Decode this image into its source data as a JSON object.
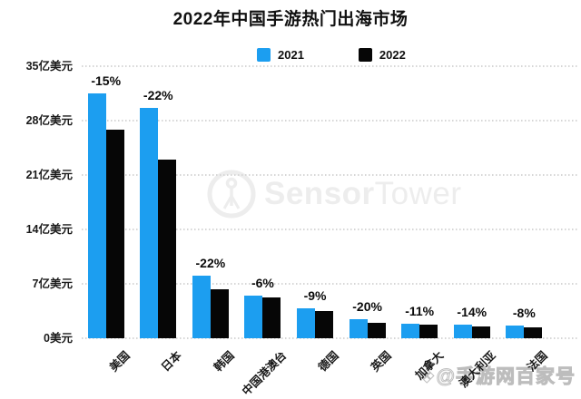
{
  "chart_data": {
    "type": "bar",
    "title": "2022年中国手游热门出海市场",
    "categories": [
      "美国",
      "日本",
      "韩国",
      "中国港澳台",
      "德国",
      "英国",
      "加拿大",
      "澳大利亚",
      "法国"
    ],
    "series": [
      {
        "name": "2021",
        "color": "#1C9EF0",
        "values": [
          31.5,
          29.6,
          8.1,
          5.5,
          3.9,
          2.5,
          1.9,
          1.75,
          1.6
        ]
      },
      {
        "name": "2022",
        "color": "#060606",
        "values": [
          26.8,
          23.0,
          6.3,
          5.2,
          3.55,
          2.0,
          1.7,
          1.5,
          1.45
        ]
      }
    ],
    "change_labels": [
      "-15%",
      "-22%",
      "-22%",
      "-6%",
      "-9%",
      "-20%",
      "-11%",
      "-14%",
      "-8%"
    ],
    "y_ticks": [
      "35亿美元",
      "28亿美元",
      "21亿美元",
      "14亿美元",
      "7亿美元",
      "0美元"
    ],
    "y_tick_values": [
      35,
      28,
      21,
      14,
      7,
      0
    ],
    "ylim": [
      0,
      35
    ],
    "unit": "亿美元",
    "grid": "horizontal dotted",
    "legend_position": "top center",
    "xlabel": "",
    "ylabel": ""
  },
  "watermarks": {
    "sensor_tower_bold": "Sensor",
    "sensor_tower_light": "Tower",
    "footer_icon": "❖",
    "footer_text": "@手游网百家号"
  },
  "colors": {
    "bar_2021": "#1C9EF0",
    "bar_2022": "#060606",
    "gridline": "#d6d6d6",
    "watermark_gray": "#ededed",
    "text": "#111111"
  }
}
